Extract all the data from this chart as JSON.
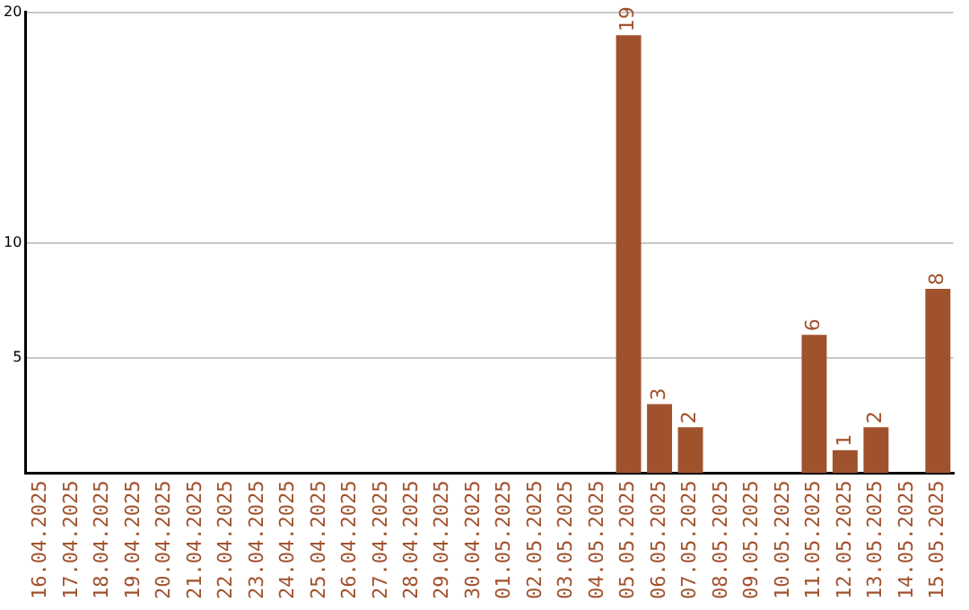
{
  "chart_data": {
    "type": "bar",
    "categories": [
      "16.04.2025",
      "17.04.2025",
      "18.04.2025",
      "19.04.2025",
      "20.04.2025",
      "21.04.2025",
      "22.04.2025",
      "23.04.2025",
      "24.04.2025",
      "25.04.2025",
      "26.04.2025",
      "27.04.2025",
      "28.04.2025",
      "29.04.2025",
      "30.04.2025",
      "01.05.2025",
      "02.05.2025",
      "03.05.2025",
      "04.05.2025",
      "05.05.2025",
      "06.05.2025",
      "07.05.2025",
      "08.05.2025",
      "09.05.2025",
      "10.05.2025",
      "11.05.2025",
      "12.05.2025",
      "13.05.2025",
      "14.05.2025",
      "15.05.2025"
    ],
    "values": [
      0,
      0,
      0,
      0,
      0,
      0,
      0,
      0,
      0,
      0,
      0,
      0,
      0,
      0,
      0,
      0,
      0,
      0,
      0,
      19,
      3,
      2,
      0,
      0,
      0,
      6,
      1,
      2,
      0,
      8
    ],
    "value_labels": [
      null,
      null,
      null,
      null,
      null,
      null,
      null,
      null,
      null,
      null,
      null,
      null,
      null,
      null,
      null,
      null,
      null,
      null,
      null,
      "19",
      "3",
      "2",
      null,
      null,
      null,
      "6",
      "1",
      "2",
      null,
      "8"
    ],
    "color": "#a0522d",
    "ylim": [
      0,
      20
    ],
    "yticks": [
      5,
      10,
      20
    ],
    "grid": "y",
    "legend": false
  }
}
